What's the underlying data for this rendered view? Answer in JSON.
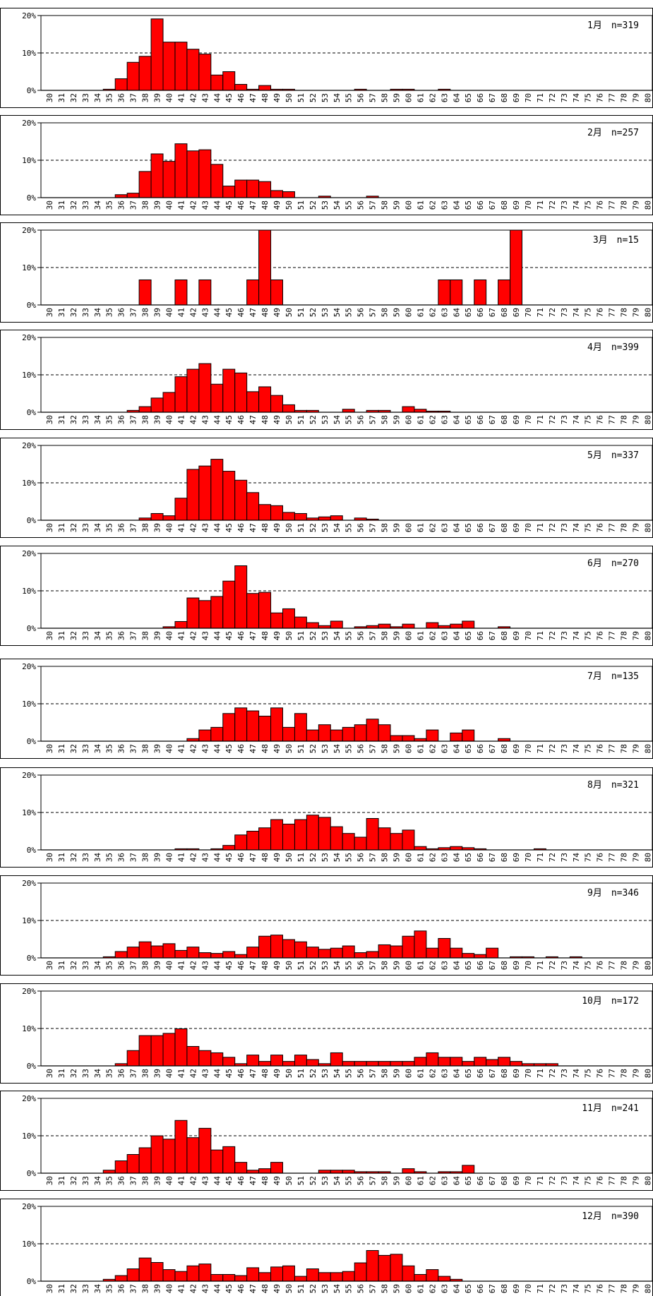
{
  "chart_data": [
    {
      "type": "bar",
      "label": "1月　n=319",
      "x_start": 30,
      "x_end": 80,
      "ylim": [
        0,
        20
      ],
      "y_ticks": [
        "0%",
        "10%",
        "20%"
      ],
      "bar_color": "#ff0000",
      "values": [
        0,
        0,
        0,
        0,
        0,
        0.3,
        3.1,
        7.5,
        9.1,
        19.1,
        12.9,
        12.9,
        11,
        9.7,
        4.1,
        5,
        1.6,
        0.3,
        1.3,
        0.3,
        0.3,
        0,
        0,
        0,
        0,
        0,
        0.3,
        0,
        0,
        0.3,
        0.3,
        0,
        0,
        0.3,
        0,
        0,
        0,
        0,
        0,
        0,
        0,
        0,
        0,
        0,
        0,
        0,
        0,
        0,
        0,
        0,
        0
      ]
    },
    {
      "type": "bar",
      "label": "2月　n=257",
      "x_start": 30,
      "x_end": 80,
      "ylim": [
        0,
        20
      ],
      "y_ticks": [
        "0%",
        "10%",
        "20%"
      ],
      "bar_color": "#ff0000",
      "values": [
        0,
        0,
        0,
        0,
        0,
        0,
        0.8,
        1.2,
        7,
        11.7,
        9.7,
        14.4,
        12.5,
        12.8,
        8.9,
        3.1,
        4.7,
        4.7,
        4.3,
        1.9,
        1.6,
        0,
        0,
        0.4,
        0,
        0,
        0,
        0.4,
        0,
        0,
        0,
        0,
        0,
        0,
        0,
        0,
        0,
        0,
        0,
        0,
        0,
        0,
        0,
        0,
        0,
        0,
        0,
        0,
        0,
        0,
        0
      ]
    },
    {
      "type": "bar",
      "label": "3月　n=15",
      "x_start": 30,
      "x_end": 80,
      "ylim": [
        0,
        20
      ],
      "y_ticks": [
        "0%",
        "10%",
        "20%"
      ],
      "bar_color": "#ff0000",
      "values": [
        0,
        0,
        0,
        0,
        0,
        0,
        0,
        0,
        6.7,
        0,
        0,
        6.7,
        0,
        6.7,
        0,
        0,
        0,
        6.7,
        20,
        6.7,
        0,
        0,
        0,
        0,
        0,
        0,
        0,
        0,
        0,
        0,
        0,
        0,
        0,
        6.7,
        6.7,
        0,
        6.7,
        0,
        6.7,
        20,
        0,
        0,
        0,
        0,
        0,
        0,
        0,
        0,
        0,
        0,
        0
      ]
    },
    {
      "type": "bar",
      "label": "4月　n=399",
      "x_start": 30,
      "x_end": 80,
      "ylim": [
        0,
        20
      ],
      "y_ticks": [
        "0%",
        "10%",
        "20%"
      ],
      "bar_color": "#ff0000",
      "values": [
        0,
        0,
        0,
        0,
        0,
        0,
        0,
        0.5,
        1.5,
        3.8,
        5.3,
        9.5,
        11.5,
        13,
        7.5,
        11.5,
        10.5,
        5.5,
        6.8,
        4.5,
        2,
        0.5,
        0.5,
        0,
        0,
        0.8,
        0,
        0.5,
        0.5,
        0,
        1.5,
        0.8,
        0.3,
        0.3,
        0,
        0,
        0,
        0,
        0,
        0,
        0,
        0,
        0,
        0,
        0,
        0,
        0,
        0,
        0,
        0,
        0
      ]
    },
    {
      "type": "bar",
      "label": "5月　n=337",
      "x_start": 30,
      "x_end": 80,
      "ylim": [
        0,
        20
      ],
      "y_ticks": [
        "0%",
        "10%",
        "20%"
      ],
      "bar_color": "#ff0000",
      "values": [
        0,
        0,
        0,
        0,
        0,
        0,
        0,
        0,
        0.6,
        1.8,
        1.2,
        5.9,
        13.6,
        14.5,
        16.3,
        13.1,
        10.7,
        7.4,
        4.2,
        3.9,
        2.1,
        1.8,
        0.6,
        0.9,
        1.2,
        0,
        0.6,
        0.3,
        0,
        0,
        0,
        0,
        0,
        0,
        0,
        0,
        0,
        0,
        0,
        0,
        0,
        0,
        0,
        0,
        0,
        0,
        0,
        0,
        0,
        0,
        0
      ]
    },
    {
      "type": "bar",
      "label": "6月　n=270",
      "x_start": 30,
      "x_end": 80,
      "ylim": [
        0,
        20
      ],
      "y_ticks": [
        "0%",
        "10%",
        "20%"
      ],
      "bar_color": "#ff0000",
      "values": [
        0,
        0,
        0,
        0,
        0,
        0,
        0,
        0,
        0,
        0,
        0.4,
        1.8,
        8.1,
        7.4,
        8.5,
        12.6,
        16.7,
        9.3,
        9.6,
        4.1,
        5.2,
        3,
        1.5,
        0.7,
        1.9,
        0,
        0.4,
        0.7,
        1.1,
        0.4,
        1.1,
        0,
        1.5,
        0.7,
        1.1,
        1.9,
        0,
        0,
        0.4,
        0,
        0,
        0,
        0,
        0,
        0,
        0,
        0,
        0,
        0,
        0,
        0
      ]
    },
    {
      "type": "bar",
      "label": "7月　n=135",
      "x_start": 30,
      "x_end": 80,
      "ylim": [
        0,
        20
      ],
      "y_ticks": [
        "0%",
        "10%",
        "20%"
      ],
      "bar_color": "#ff0000",
      "values": [
        0,
        0,
        0,
        0,
        0,
        0,
        0,
        0,
        0,
        0,
        0,
        0,
        0.7,
        3,
        3.7,
        7.4,
        8.9,
        8.1,
        6.7,
        8.9,
        3.7,
        7.4,
        3,
        4.4,
        3,
        3.7,
        4.4,
        5.9,
        4.4,
        1.5,
        1.5,
        0.7,
        3,
        0,
        2.2,
        3,
        0,
        0,
        0.7,
        0,
        0,
        0,
        0,
        0,
        0,
        0,
        0,
        0,
        0,
        0,
        0
      ]
    },
    {
      "type": "bar",
      "label": "8月　n=321",
      "x_start": 30,
      "x_end": 80,
      "ylim": [
        0,
        20
      ],
      "y_ticks": [
        "0%",
        "10%",
        "20%"
      ],
      "bar_color": "#ff0000",
      "values": [
        0,
        0,
        0,
        0,
        0,
        0,
        0,
        0,
        0,
        0,
        0,
        0.3,
        0.3,
        0,
        0.3,
        1.2,
        4,
        5,
        5.9,
        8.1,
        6.9,
        8.1,
        9.3,
        8.7,
        6.2,
        4.4,
        3.4,
        8.4,
        5.9,
        4.4,
        5.3,
        0.9,
        0.3,
        0.6,
        0.9,
        0.6,
        0.3,
        0,
        0,
        0,
        0,
        0.3,
        0,
        0,
        0,
        0,
        0,
        0,
        0,
        0,
        0
      ]
    },
    {
      "type": "bar",
      "label": "9月　n=346",
      "x_start": 30,
      "x_end": 80,
      "ylim": [
        0,
        20
      ],
      "y_ticks": [
        "0%",
        "10%",
        "20%"
      ],
      "bar_color": "#ff0000",
      "values": [
        0,
        0,
        0,
        0,
        0,
        0.3,
        1.7,
        2.9,
        4.3,
        3.2,
        3.8,
        2,
        2.9,
        1.4,
        1.2,
        1.7,
        0.9,
        2.9,
        5.8,
        6.1,
        4.9,
        4.3,
        2.9,
        2.3,
        2.6,
        3.2,
        1.4,
        1.7,
        3.5,
        3.2,
        5.8,
        7.2,
        2.6,
        5.2,
        2.6,
        1.2,
        0.9,
        2.6,
        0,
        0.3,
        0.3,
        0,
        0.3,
        0,
        0.3,
        0,
        0,
        0,
        0,
        0,
        0
      ]
    },
    {
      "type": "bar",
      "label": "10月　n=172",
      "x_start": 30,
      "x_end": 80,
      "ylim": [
        0,
        20
      ],
      "y_ticks": [
        "0%",
        "10%",
        "20%"
      ],
      "bar_color": "#ff0000",
      "values": [
        0,
        0,
        0,
        0,
        0,
        0,
        0.6,
        4.1,
        8.1,
        8.1,
        8.7,
        9.9,
        5.2,
        4.1,
        3.5,
        2.3,
        0.6,
        2.9,
        1.2,
        2.9,
        1.2,
        2.9,
        1.7,
        0.6,
        3.5,
        1.2,
        1.2,
        1.2,
        1.2,
        1.2,
        1.2,
        2.3,
        3.5,
        2.3,
        2.3,
        1.2,
        2.3,
        1.7,
        2.3,
        1.2,
        0.6,
        0.6,
        0.6,
        0,
        0,
        0,
        0,
        0,
        0,
        0,
        0
      ]
    },
    {
      "type": "bar",
      "label": "11月　n=241",
      "x_start": 30,
      "x_end": 80,
      "ylim": [
        0,
        20
      ],
      "y_ticks": [
        "0%",
        "10%",
        "20%"
      ],
      "bar_color": "#ff0000",
      "values": [
        0,
        0,
        0,
        0,
        0,
        0.8,
        3.3,
        5,
        6.8,
        10,
        9.1,
        14.1,
        9.5,
        12,
        6.2,
        7.1,
        2.9,
        0.8,
        1.2,
        2.9,
        0,
        0,
        0,
        0.8,
        0.8,
        0.8,
        0.4,
        0.4,
        0.4,
        0,
        1.2,
        0.4,
        0,
        0.4,
        0.4,
        2.1,
        0,
        0,
        0,
        0,
        0,
        0,
        0,
        0,
        0,
        0,
        0,
        0,
        0,
        0,
        0
      ]
    },
    {
      "type": "bar",
      "label": "12月　n=390",
      "x_start": 30,
      "x_end": 80,
      "ylim": [
        0,
        20
      ],
      "y_ticks": [
        "0%",
        "10%",
        "20%"
      ],
      "bar_color": "#ff0000",
      "values": [
        0,
        0,
        0,
        0,
        0,
        0.5,
        1.5,
        3.3,
        6.2,
        5,
        3.1,
        2.6,
        4.1,
        4.6,
        1.8,
        1.8,
        1.5,
        3.6,
        2.3,
        3.8,
        4.1,
        1.3,
        3.3,
        2.3,
        2.3,
        2.6,
        4.9,
        8.2,
        6.9,
        7.2,
        4.1,
        1.8,
        3.1,
        1.3,
        0.5,
        0,
        0,
        0,
        0,
        0,
        0,
        0,
        0,
        0,
        0,
        0,
        0,
        0,
        0,
        0,
        0
      ]
    }
  ]
}
